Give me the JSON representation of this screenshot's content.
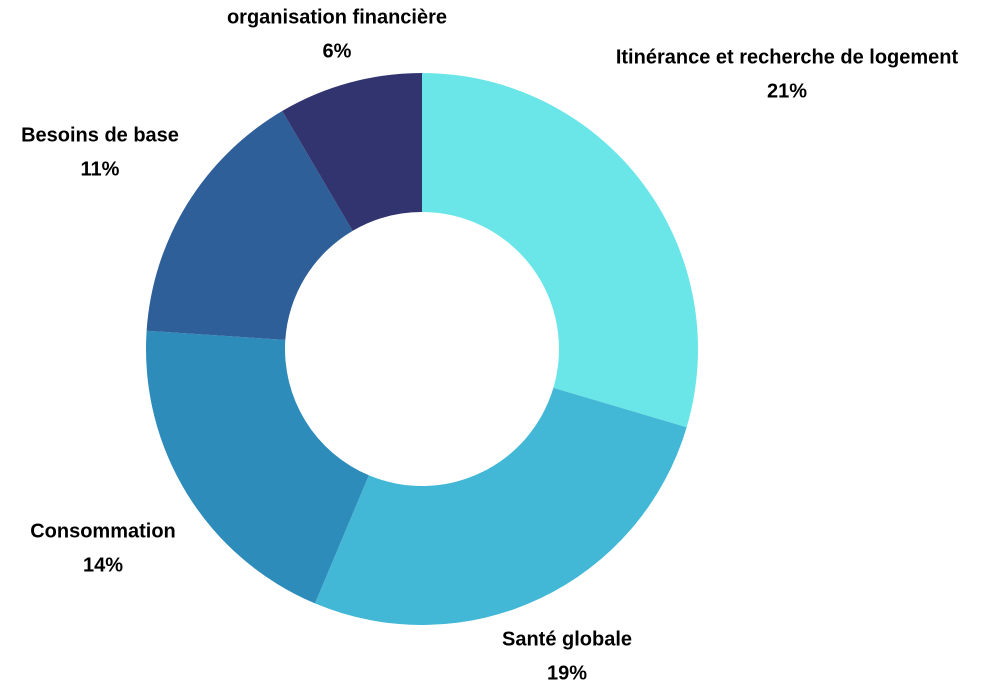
{
  "chart_data": {
    "type": "donut",
    "categories": [
      "Itinérance et recherche de logement",
      "Santé globale",
      "Consommation",
      "Besoins de base",
      "organisation financière"
    ],
    "values": [
      21,
      19,
      14,
      11,
      6
    ],
    "value_labels": [
      "21%",
      "19%",
      "14%",
      "11%",
      "6%"
    ],
    "colors": [
      "#6ae5e8",
      "#42b8d6",
      "#2e8cbb",
      "#2e5f98",
      "#31346e"
    ]
  }
}
